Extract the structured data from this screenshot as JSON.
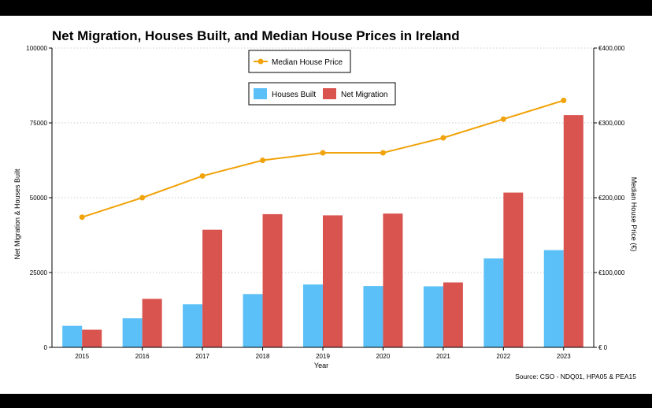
{
  "chart_data": {
    "type": "bar",
    "title": "Net Migration, Houses Built, and Median House Prices in Ireland",
    "xlabel": "Year",
    "ylabel": "Net Migration & Houses Built",
    "y2label": "Median House Price (€)",
    "categories": [
      "2015",
      "2016",
      "2017",
      "2018",
      "2019",
      "2020",
      "2021",
      "2022",
      "2023"
    ],
    "series": [
      {
        "name": "Houses Built",
        "values": [
          7200,
          9700,
          14400,
          17800,
          21000,
          20500,
          20400,
          29700,
          32500
        ],
        "color": "#5bc0f8"
      },
      {
        "name": "Net Migration",
        "values": [
          5900,
          16200,
          39300,
          44500,
          44100,
          44700,
          21700,
          51700,
          77600
        ],
        "color": "#d9534f"
      }
    ],
    "line_series": {
      "name": "Median House Price",
      "values": [
        174000,
        200000,
        229000,
        250000,
        260000,
        260000,
        280000,
        305000,
        330000
      ],
      "color": "#f0a30a"
    },
    "ylim": [
      0,
      100000
    ],
    "y2lim": [
      0,
      400000
    ],
    "yticks": [
      "0",
      "25000",
      "50000",
      "75000",
      "100000"
    ],
    "yticks_values": [
      0,
      25000,
      50000,
      75000,
      100000
    ],
    "y2ticks": [
      "€       0",
      "€100,000",
      "€200,000",
      "€300,000",
      "€400,000"
    ],
    "y2ticks_values": [
      0,
      100000,
      200000,
      300000,
      400000
    ],
    "grid": true,
    "legend_placement": "top-center",
    "source": "Source: CSO - NDQ01, HPA05 & PEA15"
  }
}
